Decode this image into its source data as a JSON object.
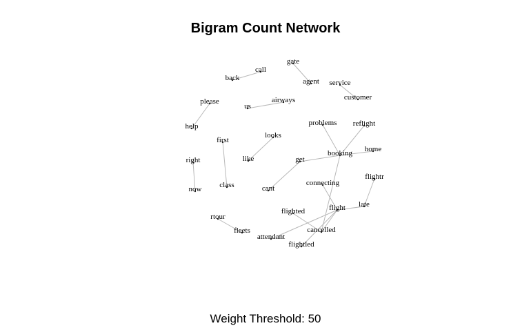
{
  "title": "Bigram Count Network",
  "footer": "Weight Threshold: 50",
  "nodes": [
    {
      "id": "call"
    },
    {
      "id": "back"
    },
    {
      "id": "gate"
    },
    {
      "id": "agent"
    },
    {
      "id": "service"
    },
    {
      "id": "customer"
    },
    {
      "id": "please"
    },
    {
      "id": "help"
    },
    {
      "id": "us"
    },
    {
      "id": "airways"
    },
    {
      "id": "problems"
    },
    {
      "id": "reflight"
    },
    {
      "id": "looks"
    },
    {
      "id": "like"
    },
    {
      "id": "first"
    },
    {
      "id": "class"
    },
    {
      "id": "booking"
    },
    {
      "id": "home"
    },
    {
      "id": "get"
    },
    {
      "id": "cant"
    },
    {
      "id": "right"
    },
    {
      "id": "now"
    },
    {
      "id": "connecting"
    },
    {
      "id": "flightr"
    },
    {
      "id": "late"
    },
    {
      "id": "flight"
    },
    {
      "id": "flighted"
    },
    {
      "id": "rtour"
    },
    {
      "id": "fleets"
    },
    {
      "id": "cancelled"
    },
    {
      "id": "attendant"
    },
    {
      "id": "flightled"
    }
  ],
  "edges": [
    [
      "back",
      "call"
    ],
    [
      "gate",
      "agent"
    ],
    [
      "service",
      "customer"
    ],
    [
      "please",
      "help"
    ],
    [
      "us",
      "airways"
    ],
    [
      "looks",
      "like"
    ],
    [
      "first",
      "class"
    ],
    [
      "right",
      "now"
    ],
    [
      "problems",
      "booking"
    ],
    [
      "reflight",
      "booking"
    ],
    [
      "get",
      "booking"
    ],
    [
      "booking",
      "home"
    ],
    [
      "get",
      "cant"
    ],
    [
      "connecting",
      "flight"
    ],
    [
      "flightr",
      "late"
    ],
    [
      "flight",
      "late"
    ],
    [
      "flighted",
      "cancelled"
    ],
    [
      "rtour",
      "fleets"
    ],
    [
      "attendant",
      "flight"
    ],
    [
      "booking",
      "cancelled"
    ],
    [
      "flight",
      "flightled"
    ],
    [
      "flight",
      "cancelled"
    ]
  ]
}
